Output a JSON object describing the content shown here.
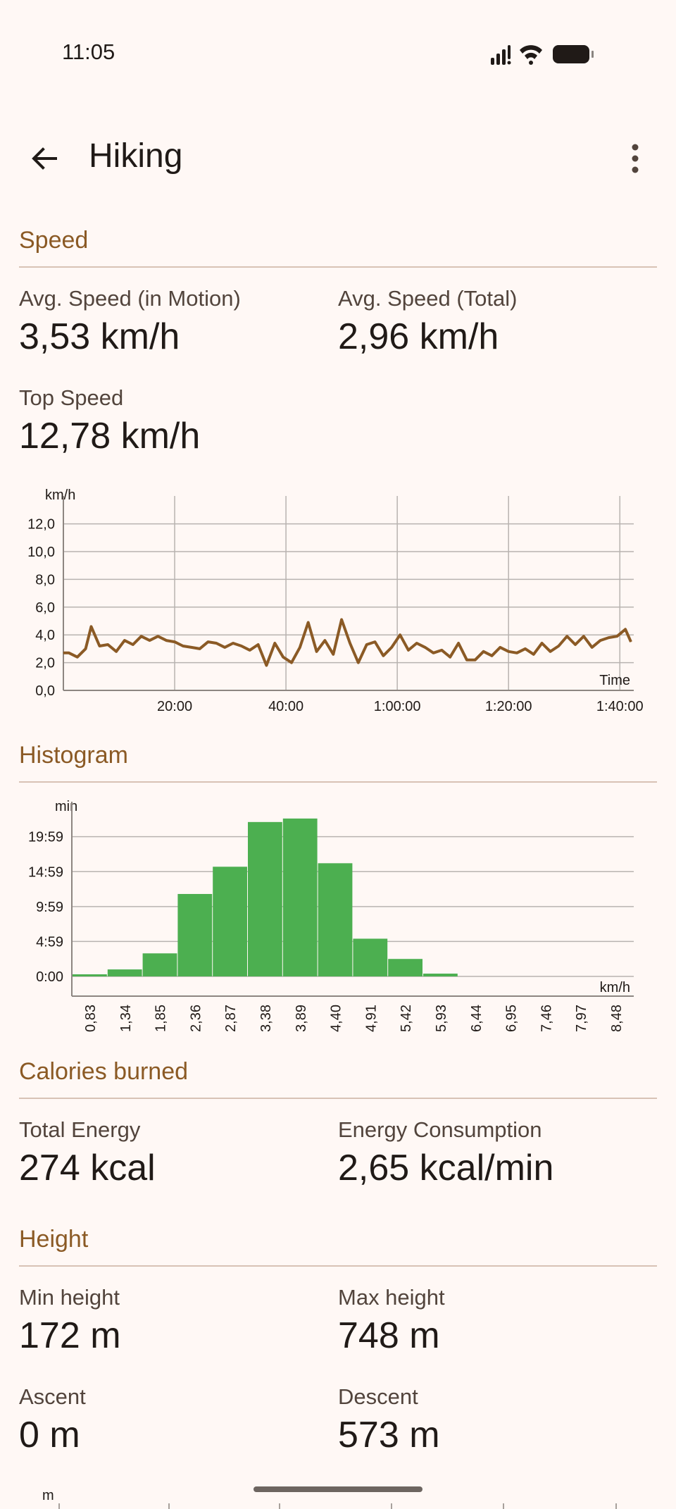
{
  "status_bar": {
    "time": "11:05"
  },
  "app_bar": {
    "title": "Hiking"
  },
  "speed": {
    "header": "Speed",
    "avg_motion_label": "Avg. Speed (in Motion)",
    "avg_motion_value": "3,53 km/h",
    "avg_total_label": "Avg. Speed (Total)",
    "avg_total_value": "2,96 km/h",
    "top_label": "Top Speed",
    "top_value": "12,78 km/h"
  },
  "histogram": {
    "header": "Histogram"
  },
  "calories": {
    "header": "Calories burned",
    "total_label": "Total Energy",
    "total_value": "274 kcal",
    "consumption_label": "Energy Consumption",
    "consumption_value": "2,65 kcal/min"
  },
  "height": {
    "header": "Height",
    "min_label": "Min height",
    "min_value": "172 m",
    "max_label": "Max height",
    "max_value": "748 m",
    "ascent_label": "Ascent",
    "ascent_value": "0 m",
    "descent_label": "Descent",
    "descent_value": "573 m",
    "chart_unit": "m"
  },
  "colors": {
    "accent": "#8b5a25",
    "line": "#8b5a25",
    "bars": "#4caf50",
    "background": "#fff8f5"
  },
  "chart_data": [
    {
      "type": "line",
      "ylabel": "km/h",
      "xlabel": "Time",
      "ylim": [
        0,
        13.3
      ],
      "xlim": [
        0,
        102.5
      ],
      "yticks": [
        "0,0",
        "2,0",
        "4,0",
        "6,0",
        "8,0",
        "10,0",
        "12,0"
      ],
      "xticks": [
        {
          "label": "20:00",
          "value": 20
        },
        {
          "label": "40:00",
          "value": 40
        },
        {
          "label": "1:00:00",
          "value": 60
        },
        {
          "label": "1:20:00",
          "value": 80
        },
        {
          "label": "1:40:00",
          "value": 100
        }
      ],
      "grid": true,
      "series": [
        {
          "x": [
            0,
            1,
            2.5,
            4,
            5,
            6.5,
            8,
            9.5,
            11,
            12.5,
            14,
            15.5,
            17,
            18.5,
            20,
            21.5,
            23,
            24.5,
            26,
            27.5,
            29,
            30.5,
            32,
            33.5,
            35,
            36.5,
            38,
            39.5,
            41,
            42.5,
            44,
            45.5,
            47,
            48.5,
            50,
            51.5,
            53,
            54.5,
            56,
            57.5,
            59,
            60.5,
            62,
            63.5,
            65,
            66.5,
            68,
            69.5,
            71,
            72.5,
            74,
            75.5,
            77,
            78.5,
            80,
            81.5,
            83,
            84.5,
            86,
            87.5,
            89,
            90.5,
            92,
            93.5,
            95,
            96.5,
            98,
            99.5,
            101,
            102
          ],
          "values": [
            2.7,
            2.7,
            2.4,
            3.0,
            4.6,
            3.2,
            3.3,
            2.8,
            3.6,
            3.3,
            3.9,
            3.6,
            3.9,
            3.6,
            3.5,
            3.2,
            3.1,
            3.0,
            3.5,
            3.4,
            3.1,
            3.4,
            3.2,
            2.9,
            3.3,
            1.8,
            3.4,
            2.4,
            2.0,
            3.1,
            4.9,
            2.8,
            3.6,
            2.6,
            5.1,
            3.4,
            2.0,
            3.3,
            3.5,
            2.5,
            3.1,
            4.0,
            2.9,
            3.4,
            3.1,
            2.7,
            2.9,
            2.4,
            3.4,
            2.2,
            2.2,
            2.8,
            2.5,
            3.1,
            2.8,
            2.7,
            3.0,
            2.6,
            3.4,
            2.8,
            3.2,
            3.9,
            3.3,
            3.9,
            3.1,
            3.6,
            3.8,
            3.9,
            4.4,
            3.5
          ]
        }
      ]
    },
    {
      "type": "bar",
      "ylabel": "min",
      "xlabel": "km/h",
      "categories": [
        "0,83",
        "1,34",
        "1,85",
        "2,36",
        "2,87",
        "3,38",
        "3,89",
        "4,40",
        "4,91",
        "5,42",
        "5,93",
        "6,44",
        "6,95",
        "7,46",
        "7,97",
        "8,48"
      ],
      "values": [
        0.3,
        1.0,
        3.3,
        11.8,
        15.7,
        22.1,
        22.6,
        16.2,
        5.4,
        2.5,
        0.4,
        0,
        0,
        0,
        0,
        0
      ],
      "yticks": [
        "0:00",
        "4:59",
        "9:59",
        "14:59",
        "19:59"
      ],
      "ylim": [
        0,
        24
      ],
      "grid": true
    }
  ]
}
